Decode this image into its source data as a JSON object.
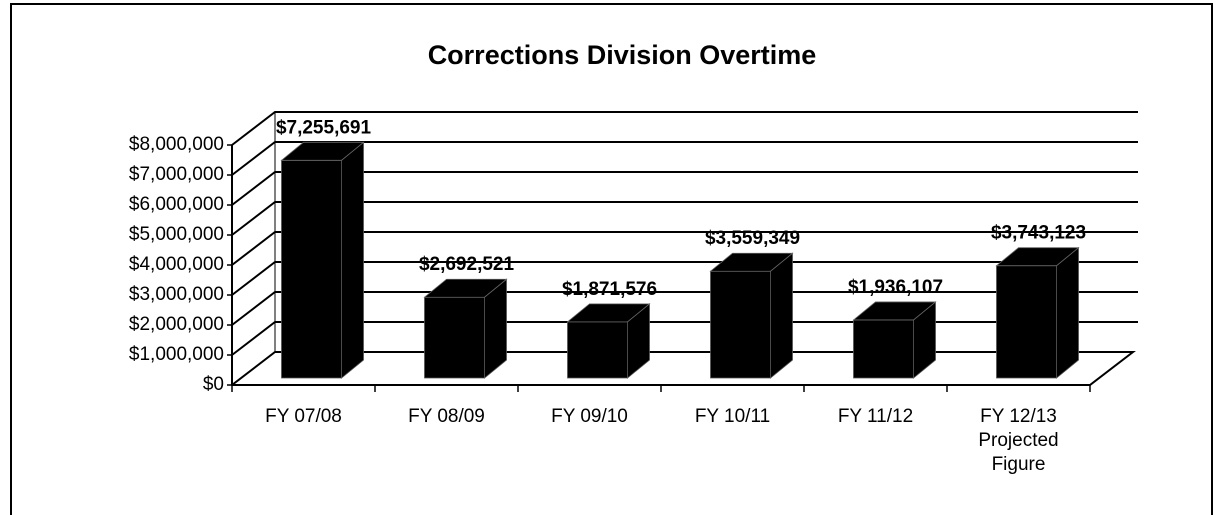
{
  "chart_data": {
    "type": "bar3d",
    "title": "Corrections Division Overtime",
    "categories": [
      "FY 07/08",
      "FY 08/09",
      "FY 09/10",
      "FY 10/11",
      "FY 11/12",
      "FY 12/13 Projected Figure"
    ],
    "values": [
      7255691,
      2692521,
      1871576,
      3559349,
      1936107,
      3743123
    ],
    "value_labels": [
      "$7,255,691",
      "$2,692,521",
      "$1,871,576",
      "$3,559,349",
      "$1,936,107",
      "$3,743,123"
    ],
    "color": "#000000",
    "ylim": [
      0,
      8000000
    ],
    "yticks": [
      {
        "value": 0,
        "label": "$0"
      },
      {
        "value": 1000000,
        "label": "$1,000,000"
      },
      {
        "value": 2000000,
        "label": "$2,000,000"
      },
      {
        "value": 3000000,
        "label": "$3,000,000"
      },
      {
        "value": 4000000,
        "label": "$4,000,000"
      },
      {
        "value": 5000000,
        "label": "$5,000,000"
      },
      {
        "value": 6000000,
        "label": "$6,000,000"
      },
      {
        "value": 7000000,
        "label": "$7,000,000"
      },
      {
        "value": 8000000,
        "label": "$8,000,000"
      }
    ],
    "grid": true
  }
}
